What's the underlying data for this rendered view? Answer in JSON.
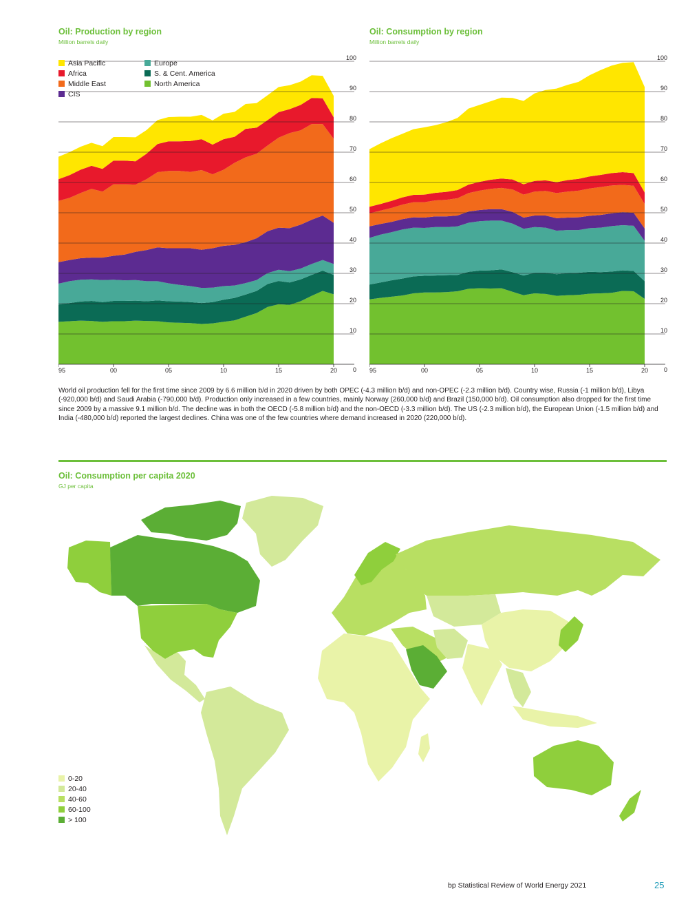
{
  "page": {
    "body_text": "World oil production fell for the first time since 2009 by 6.6 million b/d in 2020 driven by both OPEC (-4.3 million b/d) and non-OPEC (-2.3 million b/d). Country wise, Russia (-1 million b/d), Libya (-920,000 b/d) and Saudi Arabia (-790,000 b/d). Production only increased in a few countries, mainly Norway (260,000 b/d) and Brazil (150,000 b/d). Oil consumption also dropped for the first time since 2009 by a massive 9.1 million b/d. The decline was in both the OECD (-5.8 million b/d) and the non-OECD (-3.3 million b/d). The US (-2.3 million b/d), the European Union (-1.5 million b/d) and India (-480,000 b/d) reported the largest declines. China was one of the few countries where demand increased in 2020 (220,000 b/d).",
    "footer": "bp Statistical Review of World Energy 2021",
    "page_number": "25",
    "accent_color": "#6cbf3a"
  },
  "legend_regions": [
    {
      "name": "Asia Pacific",
      "color": "#ffe600"
    },
    {
      "name": "Africa",
      "color": "#e8192c"
    },
    {
      "name": "Middle East",
      "color": "#f26a1b"
    },
    {
      "name": "CIS",
      "color": "#5c2b91"
    },
    {
      "name": "Europe",
      "color": "#48a998"
    },
    {
      "name": "S. & Cent. America",
      "color": "#0b6b55"
    },
    {
      "name": "North America",
      "color": "#72c12f"
    }
  ],
  "map": {
    "title": "Oil: Consumption per capita 2020",
    "subtitle": "GJ per capita",
    "legend": [
      {
        "label": "0-20",
        "color": "#e9f3a8"
      },
      {
        "label": "20-40",
        "color": "#d3e99a"
      },
      {
        "label": "40-60",
        "color": "#b8df62"
      },
      {
        "label": "60-100",
        "color": "#8fcf3c"
      },
      {
        "label": "> 100",
        "color": "#5bae35"
      }
    ]
  },
  "chart_data": [
    {
      "type": "area",
      "stacked": true,
      "title": "Oil: Production by region",
      "subtitle": "Million barrels daily",
      "x": [
        1995,
        1996,
        1997,
        1998,
        1999,
        2000,
        2001,
        2002,
        2003,
        2004,
        2005,
        2006,
        2007,
        2008,
        2009,
        2010,
        2011,
        2012,
        2013,
        2014,
        2015,
        2016,
        2017,
        2018,
        2019,
        2020
      ],
      "xticks": [
        1995,
        2000,
        2005,
        2010,
        2015,
        2020
      ],
      "xtick_labels": [
        "95",
        "00",
        "05",
        "10",
        "15",
        "20"
      ],
      "ylim": [
        0,
        100
      ],
      "yticks": [
        0,
        10,
        20,
        30,
        40,
        50,
        60,
        70,
        80,
        90,
        100
      ],
      "series": [
        {
          "name": "North America",
          "values": [
            14.0,
            14.2,
            14.4,
            14.3,
            14.0,
            14.2,
            14.2,
            14.4,
            14.3,
            14.2,
            13.8,
            13.7,
            13.6,
            13.3,
            13.5,
            14.0,
            14.5,
            15.7,
            16.9,
            18.9,
            19.8,
            19.6,
            20.8,
            22.6,
            24.2,
            23.1
          ]
        },
        {
          "name": "S. & Cent. America",
          "values": [
            5.7,
            6.0,
            6.3,
            6.6,
            6.5,
            6.7,
            6.7,
            6.6,
            6.5,
            6.9,
            7.0,
            7.0,
            6.9,
            6.9,
            7.0,
            7.3,
            7.4,
            7.3,
            7.3,
            7.6,
            7.7,
            7.4,
            7.2,
            6.9,
            6.7,
            6.4
          ]
        },
        {
          "name": "Europe",
          "values": [
            6.9,
            7.2,
            7.2,
            7.1,
            7.3,
            7.0,
            6.8,
            6.8,
            6.6,
            6.3,
            5.9,
            5.5,
            5.3,
            5.0,
            4.8,
            4.5,
            4.1,
            3.8,
            3.6,
            3.6,
            3.7,
            3.7,
            3.6,
            3.6,
            3.5,
            3.6
          ]
        },
        {
          "name": "CIS",
          "values": [
            7.1,
            7.0,
            7.1,
            7.2,
            7.4,
            7.9,
            8.5,
            9.3,
            10.3,
            11.2,
            11.6,
            12.1,
            12.5,
            12.6,
            13.0,
            13.3,
            13.4,
            13.5,
            13.8,
            13.8,
            13.9,
            14.2,
            14.5,
            14.6,
            14.7,
            13.6
          ]
        },
        {
          "name": "Middle East",
          "values": [
            20.2,
            20.5,
            21.5,
            22.7,
            21.8,
            23.6,
            23.2,
            22.2,
            23.4,
            24.8,
            25.5,
            25.5,
            25.2,
            26.3,
            24.4,
            25.1,
            27.1,
            28.0,
            27.9,
            28.3,
            29.7,
            31.4,
            31.1,
            31.6,
            30.2,
            27.7
          ]
        },
        {
          "name": "Africa",
          "values": [
            7.2,
            7.5,
            7.7,
            7.6,
            7.5,
            7.8,
            7.8,
            7.7,
            8.4,
            9.3,
            9.8,
            9.8,
            10.2,
            10.2,
            9.8,
            10.1,
            8.6,
            9.4,
            8.6,
            8.4,
            8.4,
            7.9,
            8.4,
            8.6,
            8.5,
            7.1
          ]
        },
        {
          "name": "Asia Pacific",
          "values": [
            7.4,
            7.6,
            7.6,
            7.6,
            7.5,
            7.8,
            7.8,
            7.9,
            7.8,
            7.9,
            8.0,
            8.1,
            8.0,
            8.0,
            8.0,
            8.4,
            8.2,
            8.2,
            8.1,
            8.2,
            8.3,
            7.9,
            7.7,
            7.5,
            7.4,
            7.1
          ]
        }
      ]
    },
    {
      "type": "area",
      "stacked": true,
      "title": "Oil: Consumption by region",
      "subtitle": "Million barrels daily",
      "x": [
        1995,
        1996,
        1997,
        1998,
        1999,
        2000,
        2001,
        2002,
        2003,
        2004,
        2005,
        2006,
        2007,
        2008,
        2009,
        2010,
        2011,
        2012,
        2013,
        2014,
        2015,
        2016,
        2017,
        2018,
        2019,
        2020
      ],
      "xticks": [
        1995,
        2000,
        2005,
        2010,
        2015,
        2020
      ],
      "xtick_labels": [
        "95",
        "00",
        "05",
        "10",
        "15",
        "20"
      ],
      "ylim": [
        0,
        100
      ],
      "yticks": [
        0,
        10,
        20,
        30,
        40,
        50,
        60,
        70,
        80,
        90,
        100
      ],
      "series": [
        {
          "name": "North America",
          "values": [
            21.4,
            21.9,
            22.3,
            22.7,
            23.4,
            23.7,
            23.7,
            23.8,
            24.1,
            24.9,
            25.1,
            25.0,
            25.1,
            23.9,
            22.8,
            23.4,
            23.2,
            22.6,
            22.8,
            22.9,
            23.3,
            23.4,
            23.6,
            24.2,
            24.1,
            21.6
          ]
        },
        {
          "name": "S. & Cent. America",
          "values": [
            4.9,
            5.1,
            5.4,
            5.6,
            5.6,
            5.5,
            5.6,
            5.6,
            5.4,
            5.6,
            5.8,
            6.0,
            6.2,
            6.5,
            6.5,
            6.8,
            7.0,
            7.1,
            7.3,
            7.3,
            7.2,
            7.0,
            7.0,
            6.8,
            6.7,
            5.8
          ]
        },
        {
          "name": "Europe",
          "values": [
            15.4,
            15.8,
            15.9,
            16.2,
            16.1,
            15.8,
            16.0,
            15.9,
            16.0,
            16.2,
            16.3,
            16.4,
            16.1,
            16.0,
            15.4,
            15.1,
            14.9,
            14.4,
            14.2,
            14.1,
            14.4,
            14.7,
            15.0,
            14.9,
            14.9,
            13.3
          ]
        },
        {
          "name": "CIS",
          "values": [
            3.8,
            3.5,
            3.4,
            3.4,
            3.4,
            3.4,
            3.5,
            3.5,
            3.6,
            3.7,
            3.7,
            3.8,
            3.8,
            3.9,
            3.7,
            3.8,
            4.0,
            4.1,
            4.1,
            4.2,
            4.1,
            4.2,
            4.2,
            4.3,
            4.3,
            4.1
          ]
        },
        {
          "name": "Middle East",
          "values": [
            4.3,
            4.4,
            4.6,
            4.8,
            5.0,
            5.1,
            5.3,
            5.5,
            5.7,
            6.1,
            6.4,
            6.7,
            7.0,
            7.4,
            7.6,
            7.9,
            8.1,
            8.3,
            8.6,
            8.8,
            9.0,
            9.2,
            9.2,
            9.0,
            8.9,
            8.1
          ]
        },
        {
          "name": "Africa",
          "values": [
            2.2,
            2.2,
            2.3,
            2.4,
            2.4,
            2.5,
            2.5,
            2.6,
            2.7,
            2.8,
            2.9,
            3.0,
            3.1,
            3.3,
            3.4,
            3.5,
            3.5,
            3.6,
            3.8,
            3.9,
            4.0,
            4.0,
            4.1,
            4.2,
            4.2,
            3.8
          ]
        },
        {
          "name": "Asia Pacific",
          "values": [
            19.0,
            20.0,
            20.7,
            21.0,
            21.7,
            22.2,
            22.3,
            23.0,
            23.8,
            25.1,
            25.4,
            25.9,
            26.7,
            26.9,
            27.5,
            28.9,
            29.8,
            30.9,
            31.4,
            32.0,
            33.4,
            34.6,
            35.5,
            36.1,
            36.6,
            34.8
          ]
        }
      ]
    }
  ]
}
